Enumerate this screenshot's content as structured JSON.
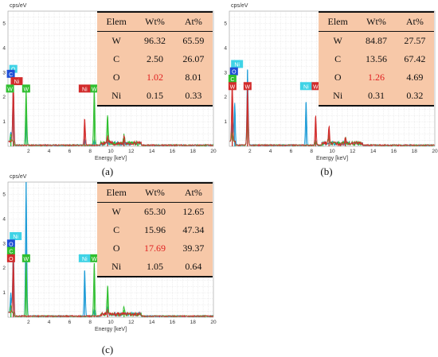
{
  "chart_data": [
    {
      "type": "line",
      "panel_id": "a",
      "caption": "(a)",
      "ylabel": "cps/eV",
      "xlabel": "Energy [keV]",
      "xlim": [
        0,
        20
      ],
      "ylim": [
        0,
        5.5
      ],
      "x_ticks": [
        "2",
        "4",
        "6",
        "8",
        "10",
        "12",
        "14",
        "16",
        "18",
        "20"
      ],
      "y_ticks": [
        "1",
        "2",
        "3",
        "4",
        "5"
      ],
      "grid": true,
      "series": [
        {
          "color": "#1a9ad6",
          "peaks": [
            [
              0.28,
              0.4
            ],
            [
              0.52,
              2.3
            ],
            [
              1.77,
              1.2
            ],
            [
              7.47,
              0.25
            ],
            [
              8.4,
              0.25
            ]
          ]
        },
        {
          "color": "#2fbf2f",
          "peaks": [
            [
              0.28,
              0.3
            ],
            [
              1.77,
              2.3
            ],
            [
              8.4,
              2.3
            ],
            [
              9.7,
              1.2
            ],
            [
              11.3,
              0.35
            ]
          ]
        },
        {
          "color": "#d22b2b",
          "peaks": [
            [
              0.52,
              2.5
            ],
            [
              7.47,
              1.1
            ],
            [
              9.7,
              0.3
            ],
            [
              11.3,
              0.25
            ]
          ]
        }
      ],
      "labels": [
        {
          "text": "O",
          "x": 0.52,
          "y": 3.15,
          "bg": "#3fd3e6"
        },
        {
          "text": "C",
          "x": 0.28,
          "y": 2.95,
          "bg": "#1f4fd6"
        },
        {
          "text": "Ni",
          "x": 0.85,
          "y": 2.65,
          "bg": "#d22b2b"
        },
        {
          "text": "W",
          "x": 0.2,
          "y": 2.35,
          "bg": "#2fbf2f"
        },
        {
          "text": "W",
          "x": 1.77,
          "y": 2.35,
          "bg": "#2fbf2f"
        },
        {
          "text": "Ni",
          "x": 7.47,
          "y": 2.35,
          "bg": "#d22b2b"
        },
        {
          "text": "W",
          "x": 8.4,
          "y": 2.35,
          "bg": "#2fbf2f"
        }
      ],
      "table": {
        "headers": [
          "Elem",
          "Wt%",
          "At%"
        ],
        "rows": [
          [
            "W",
            "96.32",
            "65.59"
          ],
          [
            "C",
            "2.50",
            "26.07"
          ],
          [
            "O",
            "1.02",
            "8.01"
          ],
          [
            "Ni",
            "0.15",
            "0.33"
          ]
        ],
        "highlight_cell": "O-Wt%"
      }
    },
    {
      "type": "line",
      "panel_id": "b",
      "caption": "(b)",
      "ylabel": "cps/eV",
      "xlabel": "Energy [keV]",
      "xlim": [
        0,
        20
      ],
      "ylim": [
        0,
        5.5
      ],
      "x_ticks": [
        "2",
        "4",
        "6",
        "8",
        "10",
        "12",
        "14",
        "16",
        "18",
        "20"
      ],
      "y_ticks": [
        "1",
        "2",
        "3",
        "4",
        "5"
      ],
      "grid": true,
      "series": [
        {
          "color": "#1a9ad6",
          "peaks": [
            [
              0.28,
              0.8
            ],
            [
              0.52,
              1.6
            ],
            [
              1.77,
              3.1
            ],
            [
              7.47,
              1.8
            ],
            [
              8.4,
              0.2
            ]
          ]
        },
        {
          "color": "#2fbf2f",
          "peaks": [
            [
              0.28,
              0.4
            ],
            [
              1.77,
              1.6
            ],
            [
              8.4,
              0.2
            ],
            [
              9.7,
              0.45
            ],
            [
              11.3,
              0.2
            ]
          ]
        },
        {
          "color": "#d22b2b",
          "peaks": [
            [
              0.28,
              2.4
            ],
            [
              1.77,
              2.4
            ],
            [
              8.4,
              1.2
            ],
            [
              9.7,
              0.75
            ],
            [
              11.3,
              0.3
            ]
          ]
        }
      ],
      "labels": [
        {
          "text": "Ni",
          "x": 0.75,
          "y": 3.35,
          "bg": "#3fd3e6"
        },
        {
          "text": "O",
          "x": 0.45,
          "y": 3.05,
          "bg": "#1f4fd6"
        },
        {
          "text": "C",
          "x": 0.3,
          "y": 2.75,
          "bg": "#2fbf2f"
        },
        {
          "text": "W",
          "x": 0.3,
          "y": 2.45,
          "bg": "#d22b2b"
        },
        {
          "text": "W",
          "x": 1.77,
          "y": 2.45,
          "bg": "#d22b2b"
        },
        {
          "text": "Ni",
          "x": 7.47,
          "y": 2.45,
          "bg": "#3fd3e6"
        },
        {
          "text": "W",
          "x": 8.4,
          "y": 2.45,
          "bg": "#d22b2b"
        }
      ],
      "table": {
        "headers": [
          "Elem",
          "Wt%",
          "At%"
        ],
        "rows": [
          [
            "W",
            "84.87",
            "27.57"
          ],
          [
            "C",
            "13.56",
            "67.42"
          ],
          [
            "O",
            "1.26",
            "4.69"
          ],
          [
            "Ni",
            "0.31",
            "0.32"
          ]
        ],
        "highlight_cell": "O-Wt%"
      }
    },
    {
      "type": "line",
      "panel_id": "c",
      "caption": "(c)",
      "ylabel": "cps/eV",
      "xlabel": "Energy [keV]",
      "xlim": [
        0,
        20
      ],
      "ylim": [
        0,
        5.5
      ],
      "x_ticks": [
        "2",
        "4",
        "6",
        "8",
        "10",
        "12",
        "14",
        "16",
        "18",
        "20"
      ],
      "y_ticks": [
        "1",
        "2",
        "3",
        "4",
        "5"
      ],
      "grid": true,
      "series": [
        {
          "color": "#1a9ad6",
          "peaks": [
            [
              0.28,
              0.8
            ],
            [
              0.52,
              2.7
            ],
            [
              1.77,
              5.6
            ],
            [
              7.47,
              1.9
            ],
            [
              8.4,
              0.3
            ],
            [
              9.7,
              0.4
            ]
          ]
        },
        {
          "color": "#2fbf2f",
          "peaks": [
            [
              0.28,
              0.3
            ],
            [
              1.77,
              2.2
            ],
            [
              8.4,
              2.2
            ],
            [
              9.7,
              1.2
            ],
            [
              11.3,
              0.3
            ]
          ]
        },
        {
          "color": "#d22b2b",
          "peaks": [
            [
              0.52,
              2.3
            ],
            [
              9.7,
              0.2
            ]
          ]
        }
      ],
      "labels": [
        {
          "text": "Ni",
          "x": 0.75,
          "y": 3.3,
          "bg": "#3fd3e6"
        },
        {
          "text": "O",
          "x": 0.3,
          "y": 3.0,
          "bg": "#1f4fd6"
        },
        {
          "text": "C",
          "x": 0.3,
          "y": 2.7,
          "bg": "#2fbf2f"
        },
        {
          "text": "O",
          "x": 0.3,
          "y": 2.4,
          "bg": "#d22b2b"
        },
        {
          "text": "W",
          "x": 1.77,
          "y": 2.4,
          "bg": "#2fbf2f"
        },
        {
          "text": "Ni",
          "x": 7.47,
          "y": 2.4,
          "bg": "#3fd3e6"
        },
        {
          "text": "W",
          "x": 8.4,
          "y": 2.4,
          "bg": "#2fbf2f"
        }
      ],
      "table": {
        "headers": [
          "Elem",
          "Wt%",
          "At%"
        ],
        "rows": [
          [
            "W",
            "65.30",
            "12.65"
          ],
          [
            "C",
            "15.96",
            "47.34"
          ],
          [
            "O",
            "17.69",
            "39.37"
          ],
          [
            "Ni",
            "1.05",
            "0.64"
          ]
        ],
        "highlight_cell": "O-Wt%"
      }
    }
  ]
}
